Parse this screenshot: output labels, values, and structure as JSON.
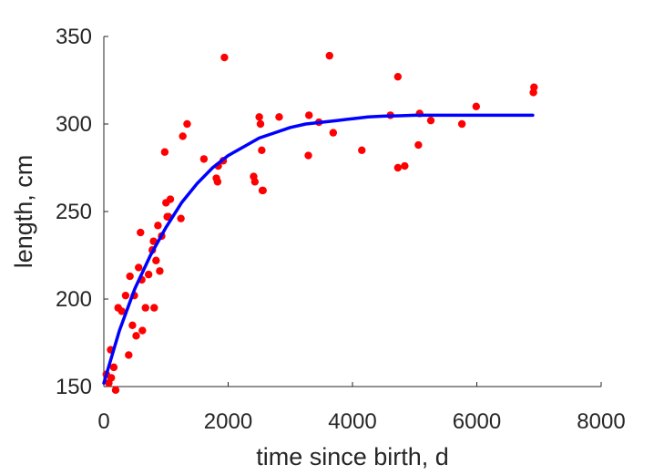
{
  "chart_data": {
    "type": "scatter",
    "xlabel": "time since birth, d",
    "ylabel": "length, cm",
    "xlim": [
      0,
      8000
    ],
    "ylim": [
      150,
      350
    ],
    "xticks": [
      "0",
      "2000",
      "4000",
      "6000",
      "8000"
    ],
    "yticks": [
      "150",
      "200",
      "250",
      "300",
      "350"
    ],
    "grid": false,
    "legend": "none",
    "colors": {
      "points": "#ff0000",
      "fit": "#0000ff",
      "axis": "#262626"
    },
    "series": [
      {
        "type": "scatter",
        "x": [
          40,
          80,
          110,
          120,
          160,
          190,
          230,
          290,
          350,
          400,
          420,
          460,
          490,
          520,
          560,
          590,
          610,
          620,
          670,
          720,
          780,
          800,
          810,
          840,
          870,
          900,
          930,
          980,
          1000,
          1020,
          1040,
          1070,
          1240,
          1270,
          1340,
          1610,
          1810,
          1830,
          1840,
          1920,
          1940,
          2410,
          2430,
          2500,
          2520,
          2540,
          2550,
          2560,
          2820,
          3290,
          3300,
          3460,
          3630,
          3690,
          4150,
          4610,
          4730,
          4730,
          4840,
          5060,
          5080,
          5260,
          5760,
          5990,
          6910,
          6920
        ],
        "y": [
          157,
          152,
          171,
          155,
          161,
          148,
          195,
          193,
          202,
          168,
          213,
          185,
          202,
          179,
          218,
          238,
          211,
          182,
          195,
          214,
          228,
          233,
          195,
          222,
          242,
          216,
          236,
          284,
          255,
          247,
          247,
          257,
          246,
          293,
          300,
          280,
          269,
          267,
          276,
          279,
          338,
          270,
          267,
          304,
          300,
          285,
          262,
          262,
          304,
          282,
          305,
          301,
          339,
          295,
          285,
          305,
          327,
          275,
          276,
          288,
          306,
          302,
          300,
          310,
          318,
          321
        ]
      },
      {
        "type": "line",
        "x": [
          0,
          250,
          500,
          750,
          1000,
          1250,
          1500,
          1750,
          2000,
          2250,
          2500,
          2750,
          3000,
          3250,
          3500,
          3750,
          4000,
          4250,
          4500,
          4750,
          5000,
          5250,
          5500,
          5750,
          6000,
          6250,
          6500,
          6750,
          6900
        ],
        "y": [
          152,
          182,
          206,
          225,
          241,
          255,
          266,
          275,
          282,
          287,
          292,
          295,
          298,
          300,
          301,
          302,
          303,
          304,
          304.5,
          304.7,
          305,
          305,
          305,
          305,
          305,
          305,
          305,
          305,
          305
        ]
      }
    ]
  }
}
